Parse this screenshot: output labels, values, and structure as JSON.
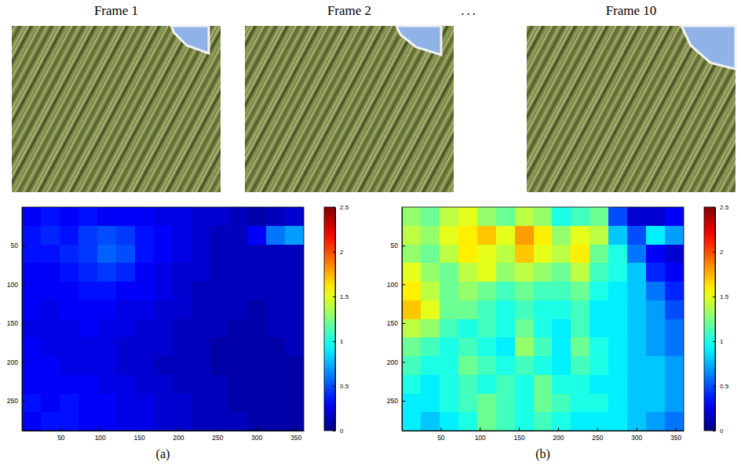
{
  "figure": {
    "frame_titles": [
      "Frame 1",
      "Frame 2",
      "Frame 10"
    ],
    "ellipsis": "..."
  },
  "chart_data": [
    {
      "type": "heatmap",
      "title": "(a)",
      "color": "jet",
      "xlim": [
        0.5,
        360.5
      ],
      "ylim": [
        0.5,
        288.5
      ],
      "xticks": [
        50,
        100,
        150,
        200,
        250,
        300,
        350
      ],
      "yticks": [
        50,
        100,
        150,
        200,
        250
      ],
      "x_bins": [
        0.5,
        24.5,
        48.5,
        72.5,
        96.5,
        120.5,
        144.5,
        168.5,
        192.5,
        216.5,
        240.5,
        264.5,
        288.5,
        312.5,
        336.5,
        360.5
      ],
      "y_bins": [
        0.5,
        24.5,
        48.5,
        72.5,
        96.5,
        120.5,
        144.5,
        168.5,
        192.5,
        216.5,
        240.5,
        264.5,
        288.5
      ],
      "cells": [
        [
          0.3,
          0.35,
          0.3,
          0.35,
          0.3,
          0.3,
          0.3,
          0.25,
          0.25,
          0.2,
          0.2,
          0.15,
          0.1,
          0.15,
          0.2
        ],
        [
          0.35,
          0.4,
          0.35,
          0.45,
          0.5,
          0.45,
          0.35,
          0.3,
          0.25,
          0.2,
          0.15,
          0.15,
          0.3,
          0.6,
          0.7
        ],
        [
          0.35,
          0.35,
          0.4,
          0.45,
          0.55,
          0.5,
          0.35,
          0.3,
          0.25,
          0.2,
          0.15,
          0.15,
          0.15,
          0.15,
          0.15
        ],
        [
          0.3,
          0.3,
          0.35,
          0.4,
          0.45,
          0.4,
          0.3,
          0.25,
          0.2,
          0.2,
          0.15,
          0.15,
          0.15,
          0.15,
          0.15
        ],
        [
          0.3,
          0.3,
          0.3,
          0.35,
          0.35,
          0.3,
          0.3,
          0.25,
          0.2,
          0.15,
          0.15,
          0.15,
          0.15,
          0.15,
          0.15
        ],
        [
          0.3,
          0.25,
          0.3,
          0.3,
          0.3,
          0.25,
          0.25,
          0.2,
          0.2,
          0.15,
          0.15,
          0.15,
          0.1,
          0.15,
          0.15
        ],
        [
          0.25,
          0.25,
          0.25,
          0.3,
          0.25,
          0.25,
          0.2,
          0.2,
          0.15,
          0.15,
          0.15,
          0.1,
          0.1,
          0.15,
          0.15
        ],
        [
          0.3,
          0.25,
          0.25,
          0.25,
          0.25,
          0.2,
          0.2,
          0.2,
          0.15,
          0.15,
          0.1,
          0.1,
          0.1,
          0.1,
          0.15
        ],
        [
          0.3,
          0.3,
          0.25,
          0.25,
          0.25,
          0.2,
          0.2,
          0.15,
          0.15,
          0.15,
          0.1,
          0.1,
          0.1,
          0.1,
          0.1
        ],
        [
          0.3,
          0.3,
          0.3,
          0.3,
          0.25,
          0.25,
          0.2,
          0.2,
          0.15,
          0.15,
          0.15,
          0.1,
          0.1,
          0.1,
          0.1
        ],
        [
          0.35,
          0.3,
          0.35,
          0.3,
          0.3,
          0.25,
          0.25,
          0.2,
          0.2,
          0.15,
          0.15,
          0.1,
          0.1,
          0.1,
          0.1
        ],
        [
          0.3,
          0.35,
          0.35,
          0.3,
          0.3,
          0.25,
          0.25,
          0.2,
          0.2,
          0.15,
          0.15,
          0.15,
          0.1,
          0.1,
          0.1
        ]
      ],
      "colorbar": {
        "range": [
          0,
          2.5
        ],
        "ticks": [
          0,
          0.5,
          1,
          1.5,
          2,
          2.5
        ]
      }
    },
    {
      "type": "heatmap",
      "title": "(b)",
      "color": "jet",
      "xlim": [
        0.5,
        360.5
      ],
      "ylim": [
        0.5,
        288.5
      ],
      "xticks": [
        50,
        100,
        150,
        200,
        250,
        300,
        350
      ],
      "yticks": [
        50,
        100,
        150,
        200,
        250
      ],
      "x_bins": [
        0.5,
        24.5,
        48.5,
        72.5,
        96.5,
        120.5,
        144.5,
        168.5,
        192.5,
        216.5,
        240.5,
        264.5,
        288.5,
        312.5,
        336.5,
        360.5
      ],
      "y_bins": [
        0.5,
        24.5,
        48.5,
        72.5,
        96.5,
        120.5,
        144.5,
        168.5,
        192.5,
        216.5,
        240.5,
        264.5,
        288.5
      ],
      "cells": [
        [
          1.3,
          1.2,
          1.4,
          1.5,
          1.3,
          1.2,
          1.4,
          1.3,
          1.0,
          1.1,
          1.2,
          0.5,
          0.2,
          0.2,
          0.3
        ],
        [
          1.4,
          1.3,
          1.5,
          1.6,
          1.7,
          1.5,
          1.8,
          1.6,
          1.3,
          1.5,
          1.4,
          0.8,
          0.5,
          0.9,
          0.7
        ],
        [
          1.3,
          1.2,
          1.4,
          1.6,
          1.5,
          1.4,
          1.7,
          1.5,
          1.4,
          1.6,
          1.2,
          1.0,
          0.6,
          0.3,
          0.2
        ],
        [
          1.5,
          1.3,
          1.2,
          1.4,
          1.5,
          1.3,
          1.4,
          1.3,
          1.2,
          1.4,
          1.1,
          1.0,
          0.8,
          0.4,
          0.3
        ],
        [
          1.6,
          1.4,
          1.2,
          1.3,
          1.2,
          1.1,
          1.2,
          1.1,
          1.1,
          1.2,
          1.0,
          0.9,
          0.8,
          0.6,
          0.4
        ],
        [
          1.7,
          1.5,
          1.2,
          1.2,
          1.1,
          1.0,
          1.1,
          1.0,
          1.0,
          1.1,
          0.9,
          0.9,
          0.8,
          0.7,
          0.5
        ],
        [
          1.4,
          1.3,
          1.1,
          1.0,
          1.1,
          1.0,
          1.2,
          1.0,
          0.9,
          1.1,
          0.9,
          0.9,
          0.8,
          0.7,
          0.6
        ],
        [
          1.2,
          1.1,
          1.0,
          1.1,
          1.0,
          0.9,
          1.3,
          1.1,
          0.9,
          1.2,
          1.0,
          0.9,
          0.8,
          0.7,
          0.6
        ],
        [
          1.1,
          1.0,
          1.0,
          1.2,
          1.1,
          1.0,
          1.1,
          1.0,
          0.9,
          1.1,
          1.0,
          0.9,
          0.8,
          0.8,
          0.7
        ],
        [
          1.0,
          0.9,
          1.0,
          1.1,
          1.0,
          1.1,
          1.0,
          1.2,
          1.0,
          1.0,
          0.9,
          0.9,
          0.8,
          0.8,
          0.7
        ],
        [
          0.9,
          0.9,
          1.0,
          1.1,
          1.2,
          1.1,
          1.0,
          1.2,
          1.1,
          1.0,
          1.0,
          0.9,
          0.8,
          0.8,
          0.7
        ],
        [
          0.9,
          0.8,
          0.9,
          1.0,
          1.2,
          1.1,
          1.0,
          1.1,
          1.0,
          0.9,
          0.9,
          0.9,
          0.8,
          0.7,
          0.6
        ]
      ],
      "colorbar": {
        "range": [
          0,
          2.5
        ],
        "ticks": [
          0,
          0.5,
          1,
          1.5,
          2,
          2.5
        ]
      }
    }
  ]
}
